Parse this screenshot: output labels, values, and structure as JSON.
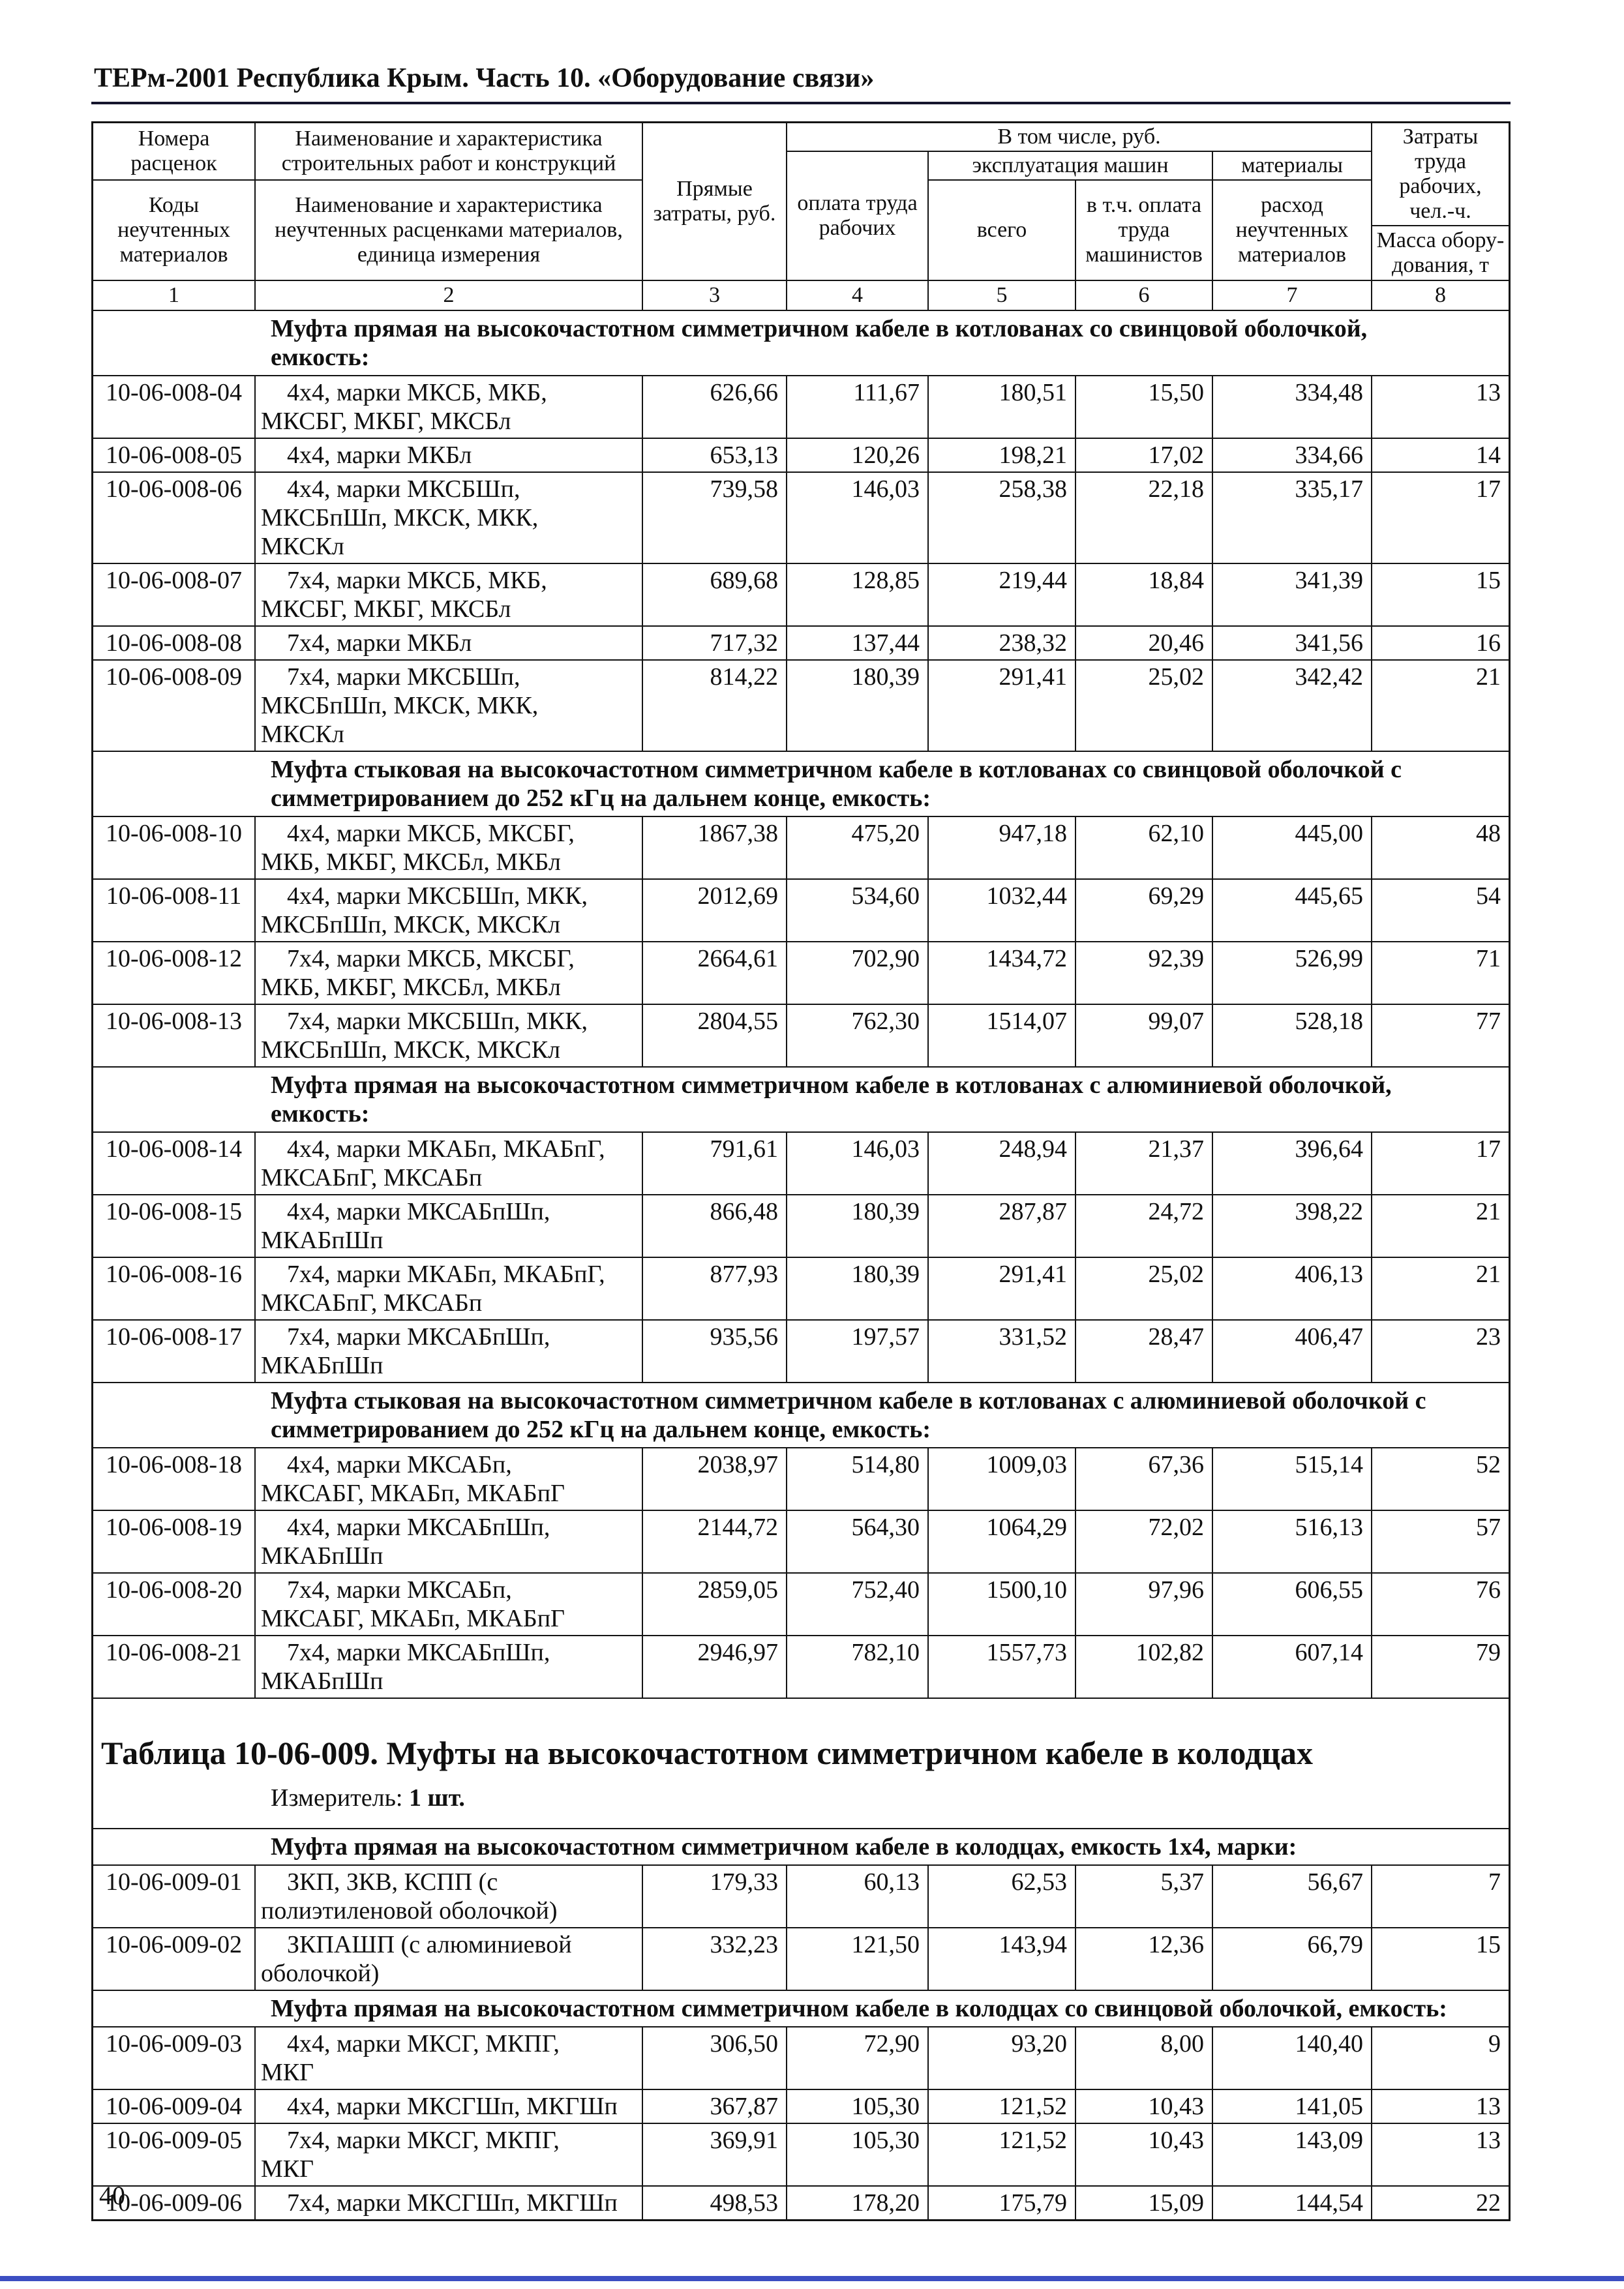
{
  "page": {
    "header_title": "ТЕРм-2001 Республика Крым. Часть 10. «Оборудование связи»",
    "page_number": "40"
  },
  "colors": {
    "footer_bar": "#3c4ec2"
  },
  "table": {
    "header": {
      "col1_top": "Номера расценок",
      "col1_bottom": "Коды неучтенных материалов",
      "col2_top": "Наименование и характеристика строительных работ и конструкций",
      "col2_bottom": "Наименование и характеристика неучтенных расценками материалов, единица измерения",
      "col3": "Прямые затраты, руб.",
      "group_including": "В том числе, руб.",
      "col4": "оплата труда рабочих",
      "group_machines": "эксплуатация машин",
      "col5": "всего",
      "col6": "в т.ч. оплата труда машинистов",
      "col7_top": "материалы",
      "col7_bottom": "расход неучтенных материалов",
      "col8_top": "Затраты труда рабочих, чел.-ч.",
      "col8_bottom": "Масса обору-\nдования, т",
      "col_numbers": [
        "1",
        "2",
        "3",
        "4",
        "5",
        "6",
        "7",
        "8"
      ]
    },
    "blocks": [
      {
        "type": "section",
        "text": "Муфта прямая на высокочастотном симметричном кабеле в котлованах со свинцовой оболочкой,\nемкость:"
      },
      {
        "type": "row",
        "code": "10-06-008-04",
        "name": "4х4, марки МКСБ, МКБ,\nМКСБГ, МКБГ, МКСБл",
        "values": [
          "626,66",
          "111,67",
          "180,51",
          "15,50",
          "334,48",
          "13"
        ]
      },
      {
        "type": "row",
        "code": "10-06-008-05",
        "name": "4х4, марки МКБл",
        "values": [
          "653,13",
          "120,26",
          "198,21",
          "17,02",
          "334,66",
          "14"
        ]
      },
      {
        "type": "row",
        "code": "10-06-008-06",
        "name": "4х4, марки МКСБШп,\nМКСБпШп, МКСК, МКК,\nМКСКл",
        "values": [
          "739,58",
          "146,03",
          "258,38",
          "22,18",
          "335,17",
          "17"
        ]
      },
      {
        "type": "row",
        "code": "10-06-008-07",
        "name": "7х4, марки МКСБ, МКБ,\nМКСБГ, МКБГ, МКСБл",
        "values": [
          "689,68",
          "128,85",
          "219,44",
          "18,84",
          "341,39",
          "15"
        ]
      },
      {
        "type": "row",
        "code": "10-06-008-08",
        "name": "7х4, марки МКБл",
        "values": [
          "717,32",
          "137,44",
          "238,32",
          "20,46",
          "341,56",
          "16"
        ]
      },
      {
        "type": "row",
        "code": "10-06-008-09",
        "name": "7х4, марки МКСБШп,\nМКСБпШп, МКСК, МКК,\nМКСКл",
        "values": [
          "814,22",
          "180,39",
          "291,41",
          "25,02",
          "342,42",
          "21"
        ]
      },
      {
        "type": "section",
        "text": "Муфта стыковая на высокочастотном симметричном кабеле в котлованах со свинцовой оболочкой с\nсимметрированием до 252 кГц на дальнем конце, емкость:"
      },
      {
        "type": "row",
        "code": "10-06-008-10",
        "name": "4х4, марки МКСБ, МКСБГ,\nМКБ, МКБГ, МКСБл, МКБл",
        "values": [
          "1867,38",
          "475,20",
          "947,18",
          "62,10",
          "445,00",
          "48"
        ]
      },
      {
        "type": "row",
        "code": "10-06-008-11",
        "name": "4х4, марки МКСБШп, МКК,\nМКСБпШп, МКСК, МКСКл",
        "values": [
          "2012,69",
          "534,60",
          "1032,44",
          "69,29",
          "445,65",
          "54"
        ]
      },
      {
        "type": "row",
        "code": "10-06-008-12",
        "name": "7х4, марки МКСБ, МКСБГ,\nМКБ, МКБГ, МКСБл, МКБл",
        "values": [
          "2664,61",
          "702,90",
          "1434,72",
          "92,39",
          "526,99",
          "71"
        ]
      },
      {
        "type": "row",
        "code": "10-06-008-13",
        "name": "7х4, марки МКСБШп, МКК,\nМКСБпШп, МКСК, МКСКл",
        "values": [
          "2804,55",
          "762,30",
          "1514,07",
          "99,07",
          "528,18",
          "77"
        ]
      },
      {
        "type": "section",
        "text": "Муфта прямая на высокочастотном симметричном кабеле в котлованах с алюминиевой оболочкой,\nемкость:"
      },
      {
        "type": "row",
        "code": "10-06-008-14",
        "name": "4х4, марки МКАБп, МКАБпГ,\nМКСАБпГ, МКСАБп",
        "values": [
          "791,61",
          "146,03",
          "248,94",
          "21,37",
          "396,64",
          "17"
        ]
      },
      {
        "type": "row",
        "code": "10-06-008-15",
        "name": "4х4, марки МКСАБпШп,\nМКАБпШп",
        "values": [
          "866,48",
          "180,39",
          "287,87",
          "24,72",
          "398,22",
          "21"
        ]
      },
      {
        "type": "row",
        "code": "10-06-008-16",
        "name": "7х4, марки МКАБп, МКАБпГ,\nМКСАБпГ, МКСАБп",
        "values": [
          "877,93",
          "180,39",
          "291,41",
          "25,02",
          "406,13",
          "21"
        ]
      },
      {
        "type": "row",
        "code": "10-06-008-17",
        "name": "7х4, марки МКСАБпШп,\nМКАБпШп",
        "values": [
          "935,56",
          "197,57",
          "331,52",
          "28,47",
          "406,47",
          "23"
        ]
      },
      {
        "type": "section",
        "text": "Муфта стыковая на высокочастотном симметричном кабеле в котлованах с алюминиевой оболочкой с\nсимметрированием до 252 кГц на дальнем конце, емкость:"
      },
      {
        "type": "row",
        "code": "10-06-008-18",
        "name": "4х4, марки МКСАБп,\nМКСАБГ, МКАБп, МКАБпГ",
        "values": [
          "2038,97",
          "514,80",
          "1009,03",
          "67,36",
          "515,14",
          "52"
        ]
      },
      {
        "type": "row",
        "code": "10-06-008-19",
        "name": "4х4, марки МКСАБпШп,\nМКАБпШп",
        "values": [
          "2144,72",
          "564,30",
          "1064,29",
          "72,02",
          "516,13",
          "57"
        ]
      },
      {
        "type": "row",
        "code": "10-06-008-20",
        "name": "7х4, марки МКСАБп,\nМКСАБГ, МКАБп, МКАБпГ",
        "values": [
          "2859,05",
          "752,40",
          "1500,10",
          "97,96",
          "606,55",
          "76"
        ]
      },
      {
        "type": "row",
        "code": "10-06-008-21",
        "name": "7х4, марки МКСАБпШп,\nМКАБпШп",
        "values": [
          "2946,97",
          "782,10",
          "1557,73",
          "102,82",
          "607,14",
          "79"
        ]
      },
      {
        "type": "title",
        "title": "Таблица 10-06-009. Муфты на высокочастотном симметричном кабеле в колодцах",
        "measure_label": "Измеритель:",
        "measure_value": "1 шт."
      },
      {
        "type": "section",
        "text": "Муфта прямая на высокочастотном симметричном кабеле в колодцах, емкость 1х4, марки:"
      },
      {
        "type": "row",
        "code": "10-06-009-01",
        "name": "ЗКП, ЗКВ, КСПП (с\nполиэтиленовой оболочкой)",
        "values": [
          "179,33",
          "60,13",
          "62,53",
          "5,37",
          "56,67",
          "7"
        ]
      },
      {
        "type": "row",
        "code": "10-06-009-02",
        "name": "ЗКПАШП (с алюминиевой\nоболочкой)",
        "values": [
          "332,23",
          "121,50",
          "143,94",
          "12,36",
          "66,79",
          "15"
        ]
      },
      {
        "type": "section",
        "text": "Муфта прямая на высокочастотном симметричном кабеле в колодцах со свинцовой оболочкой, емкость:"
      },
      {
        "type": "row",
        "code": "10-06-009-03",
        "name": "4х4, марки МКСГ, МКПГ,\nМКГ",
        "values": [
          "306,50",
          "72,90",
          "93,20",
          "8,00",
          "140,40",
          "9"
        ]
      },
      {
        "type": "row",
        "code": "10-06-009-04",
        "name": "4х4, марки МКСГШп, МКГШп",
        "values": [
          "367,87",
          "105,30",
          "121,52",
          "10,43",
          "141,05",
          "13"
        ]
      },
      {
        "type": "row",
        "code": "10-06-009-05",
        "name": "7х4, марки МКСГ, МКПГ,\nМКГ",
        "values": [
          "369,91",
          "105,30",
          "121,52",
          "10,43",
          "143,09",
          "13"
        ]
      },
      {
        "type": "row",
        "code": "10-06-009-06",
        "name": "7х4, марки МКСГШп, МКГШп",
        "values": [
          "498,53",
          "178,20",
          "175,79",
          "15,09",
          "144,54",
          "22"
        ]
      }
    ]
  }
}
